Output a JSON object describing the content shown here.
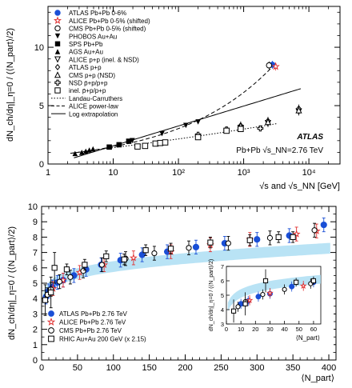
{
  "chart_data": [
    {
      "type": "scatter",
      "x_scale": "log",
      "xlim": [
        1,
        30000
      ],
      "ylim": [
        0,
        13.5
      ],
      "ylabel": "dN_ch/dη|_η=0 / (⟨N_part⟩/2)",
      "xlabel": "√s and √s_NN [GeV]",
      "x_tick_labels": [
        "1",
        "10",
        "10²",
        "10³",
        "10⁴"
      ],
      "y_tick_labels": [
        "0",
        "5",
        "10"
      ],
      "experiment_label": "ATLAS",
      "annotation": "Pb+Pb √s_NN=2.76 TeV",
      "legend": [
        {
          "label": "ATLAS Pb+Pb 0-6%",
          "marker": "circle-filled",
          "color": "#1a4fd6"
        },
        {
          "label": "ALICE Pb+Pb 0-5% (shifted)",
          "marker": "star-open",
          "color": "#e03030"
        },
        {
          "label": "CMS Pb+Pb 0-5% (shifted)",
          "marker": "circle-open",
          "color": "#000000"
        },
        {
          "label": "PHOBOS Au+Au",
          "marker": "triangle-down-filled",
          "color": "#000000"
        },
        {
          "label": "SPS Pb+Pb",
          "marker": "square-filled",
          "color": "#000000"
        },
        {
          "label": "AGS Au+Au",
          "marker": "triangle-up-filled",
          "color": "#000000"
        },
        {
          "label": "ALICE p+p (inel. & NSD)",
          "marker": "triangle-down-open",
          "color": "#000000"
        },
        {
          "label": "ATLAS p+p",
          "marker": "diamond-open",
          "color": "#000000"
        },
        {
          "label": "CMS p+p (NSD)",
          "marker": "triangle-up-open",
          "color": "#000000"
        },
        {
          "label": "NSD p̄+p/p+p",
          "marker": "cross-open",
          "color": "#000000"
        },
        {
          "label": "inel. p̄+p/p+p",
          "marker": "square-open",
          "color": "#000000"
        },
        {
          "label": "Landau-Carruthers",
          "line": "dotted"
        },
        {
          "label": "ALICE power-law",
          "line": "dashed"
        },
        {
          "label": "Log extrapolation",
          "line": "solid"
        }
      ],
      "series": [
        {
          "name": "ATLAS Pb+Pb 0-6%",
          "marker": "circle-filled",
          "color": "#1a4fd6",
          "points": [
            [
              2760,
              8.5
            ]
          ]
        },
        {
          "name": "ALICE Pb+Pb 0-5% (shifted)",
          "marker": "star-open",
          "color": "#e03030",
          "points": [
            [
              3100,
              8.35
            ]
          ]
        },
        {
          "name": "CMS Pb+Pb 0-5% (shifted)",
          "marker": "circle-open",
          "color": "#000000",
          "points": [
            [
              2450,
              8.45
            ]
          ]
        },
        {
          "name": "PHOBOS Au+Au",
          "marker": "triangle-down-filled",
          "color": "#000000",
          "points": [
            [
              19.6,
              2.0
            ],
            [
              56,
              2.6
            ],
            [
              130,
              3.3
            ],
            [
              200,
              3.6
            ]
          ]
        },
        {
          "name": "SPS Pb+Pb",
          "marker": "square-filled",
          "color": "#000000",
          "points": [
            [
              8.7,
              1.45
            ],
            [
              12.3,
              1.65
            ],
            [
              17.3,
              1.95
            ]
          ]
        },
        {
          "name": "AGS Au+Au",
          "marker": "triangle-up-filled",
          "color": "#000000",
          "points": [
            [
              2.6,
              0.9
            ],
            [
              3.3,
              1.0
            ],
            [
              3.8,
              1.1
            ],
            [
              4.3,
              1.2
            ],
            [
              4.9,
              1.3
            ]
          ]
        },
        {
          "name": "ALICE p+p (inel. & NSD)",
          "marker": "triangle-down-open",
          "color": "#000000",
          "points": [
            [
              900,
              3.1
            ],
            [
              2360,
              3.5
            ],
            [
              7000,
              4.5
            ]
          ]
        },
        {
          "name": "ATLAS p+p",
          "marker": "diamond-open",
          "color": "#000000",
          "points": [
            [
              900,
              3.3
            ],
            [
              2360,
              3.7
            ],
            [
              7000,
              4.75
            ]
          ]
        },
        {
          "name": "CMS p+p (NSD)",
          "marker": "triangle-up-open",
          "color": "#000000",
          "points": [
            [
              900,
              3.25
            ],
            [
              2360,
              3.6
            ],
            [
              7000,
              4.6
            ]
          ]
        },
        {
          "name": "NSD p̄+p/p+p",
          "marker": "cross-open",
          "color": "#000000",
          "points": [
            [
              200,
              2.5
            ],
            [
              546,
              2.95
            ],
            [
              900,
              3.2
            ],
            [
              1800,
              3.05
            ]
          ]
        },
        {
          "name": "inel. p̄+p/p+p",
          "marker": "square-open",
          "color": "#000000",
          "points": [
            [
              23.6,
              1.5
            ],
            [
              30.8,
              1.55
            ],
            [
              44.5,
              1.75
            ],
            [
              52.6,
              1.8
            ],
            [
              62.7,
              1.85
            ],
            [
              200,
              2.3
            ],
            [
              546,
              2.85
            ],
            [
              900,
              3.0
            ]
          ]
        }
      ],
      "curves": {
        "landau_carruthers": "dotted",
        "alice_power_law": "dashed",
        "log_extrapolation": "solid"
      }
    },
    {
      "type": "scatter",
      "xlim": [
        0,
        410
      ],
      "ylim": [
        0,
        10
      ],
      "ylabel": "dN_ch/dη|_η=0 / (⟨N_part⟩/2)",
      "xlabel": "⟨N_part⟩",
      "x_tick_labels": [
        "0",
        "50",
        "100",
        "150",
        "200",
        "250",
        "300",
        "350",
        "400"
      ],
      "y_tick_labels": [
        "0",
        "1",
        "2",
        "3",
        "4",
        "5",
        "6",
        "7",
        "8",
        "9",
        "10"
      ],
      "band_color": "#a8dcf2",
      "legend": [
        {
          "label": "ATLAS Pb+Pb 2.76 TeV",
          "marker": "circle-filled",
          "color": "#1a4fd6"
        },
        {
          "label": "ALICE Pb+Pb 2.76 TeV",
          "marker": "star-open",
          "color": "#e03030"
        },
        {
          "label": "CMS Pb+Pb 2.76 TeV",
          "marker": "circle-open",
          "color": "#000000"
        },
        {
          "label": "RHIC Au+Au 200 GeV (x 2.15)",
          "marker": "square-open",
          "color": "#000000"
        }
      ],
      "series": [
        {
          "name": "ATLAS Pb+Pb 2.76 TeV",
          "marker": "circle-filled",
          "color": "#1a4fd6",
          "points": [
            [
              6,
              4.1
            ],
            [
              10,
              4.5
            ],
            [
              15,
              4.75
            ],
            [
              22,
              5.05
            ],
            [
              30,
              5.2
            ],
            [
              45,
              5.5
            ],
            [
              62,
              5.9
            ],
            [
              83,
              6.2
            ],
            [
              110,
              6.5
            ],
            [
              140,
              6.85
            ],
            [
              175,
              7.05
            ],
            [
              215,
              7.35
            ],
            [
              255,
              7.6
            ],
            [
              300,
              7.85
            ],
            [
              345,
              8.1
            ],
            [
              393,
              8.8
            ]
          ]
        },
        {
          "name": "ALICE Pb+Pb 2.76 TeV",
          "marker": "star-open",
          "color": "#e03030",
          "points": [
            [
              16,
              4.65
            ],
            [
              30,
              5.2
            ],
            [
              53,
              5.7
            ],
            [
              87,
              6.2
            ],
            [
              128,
              6.65
            ],
            [
              180,
              7.05
            ],
            [
              235,
              7.5
            ],
            [
              290,
              7.85
            ],
            [
              355,
              8.2
            ],
            [
              383,
              8.4
            ]
          ]
        },
        {
          "name": "CMS Pb+Pb 2.76 TeV",
          "marker": "circle-open",
          "color": "#000000",
          "points": [
            [
              8,
              4.25
            ],
            [
              13,
              4.6
            ],
            [
              25,
              5.1
            ],
            [
              40,
              5.4
            ],
            [
              58,
              5.8
            ],
            [
              84,
              6.2
            ],
            [
              117,
              6.6
            ],
            [
              157,
              6.95
            ],
            [
              205,
              7.3
            ],
            [
              260,
              7.6
            ],
            [
              318,
              7.95
            ],
            [
              380,
              8.45
            ]
          ]
        },
        {
          "name": "RHIC Au+Au 200 GeV (x 2.15)",
          "marker": "square-open",
          "color": "#000000",
          "points": [
            [
              5,
              3.9
            ],
            [
              13,
              4.4
            ],
            [
              18,
              6.0
            ],
            [
              35,
              5.9
            ],
            [
              60,
              6.2
            ],
            [
              90,
              6.75
            ],
            [
              115,
              6.55
            ],
            [
              145,
              7.15
            ],
            [
              180,
              7.25
            ],
            [
              235,
              7.65
            ],
            [
              290,
              7.8
            ],
            [
              330,
              8.0
            ],
            [
              350,
              8.0
            ]
          ]
        }
      ],
      "inset": {
        "xlim": [
          0,
          65
        ],
        "ylim": [
          3,
          7
        ],
        "ylabel": "dN_ch/dη|_η=0 / (⟨N_part⟩/2)",
        "xlabel": "⟨N_part⟩",
        "x_tick_labels": [
          "0",
          "10",
          "20",
          "30",
          "40",
          "50",
          "60"
        ],
        "y_tick_labels": [
          "3",
          "4",
          "5",
          "6",
          "7"
        ],
        "series": [
          {
            "name": "ATLAS Pb+Pb 2.76 TeV",
            "marker": "circle-filled",
            "color": "#1a4fd6",
            "points": [
              [
                10,
                4.4
              ],
              [
                15,
                4.6
              ],
              [
                22,
                4.9
              ],
              [
                30,
                5.1
              ],
              [
                45,
                5.6
              ],
              [
                60,
                5.9
              ]
            ]
          },
          {
            "name": "ALICE Pb+Pb 2.76 TeV",
            "marker": "star-open",
            "color": "#e03030",
            "points": [
              [
                16,
                4.65
              ],
              [
                30,
                5.15
              ],
              [
                53,
                5.65
              ]
            ]
          },
          {
            "name": "CMS Pb+Pb 2.76 TeV",
            "marker": "circle-open",
            "color": "#000000",
            "points": [
              [
                8,
                4.2
              ],
              [
                13,
                4.55
              ],
              [
                25,
                5.05
              ],
              [
                40,
                5.4
              ],
              [
                58,
                5.8
              ]
            ]
          },
          {
            "name": "RHIC Au+Au 200 GeV (x 2.15)",
            "marker": "square-open",
            "color": "#000000",
            "points": [
              [
                5,
                3.9
              ],
              [
                13,
                4.4
              ],
              [
                27,
                6.0
              ],
              [
                48,
                5.9
              ],
              [
                60,
                6.0
              ]
            ]
          }
        ]
      }
    }
  ]
}
